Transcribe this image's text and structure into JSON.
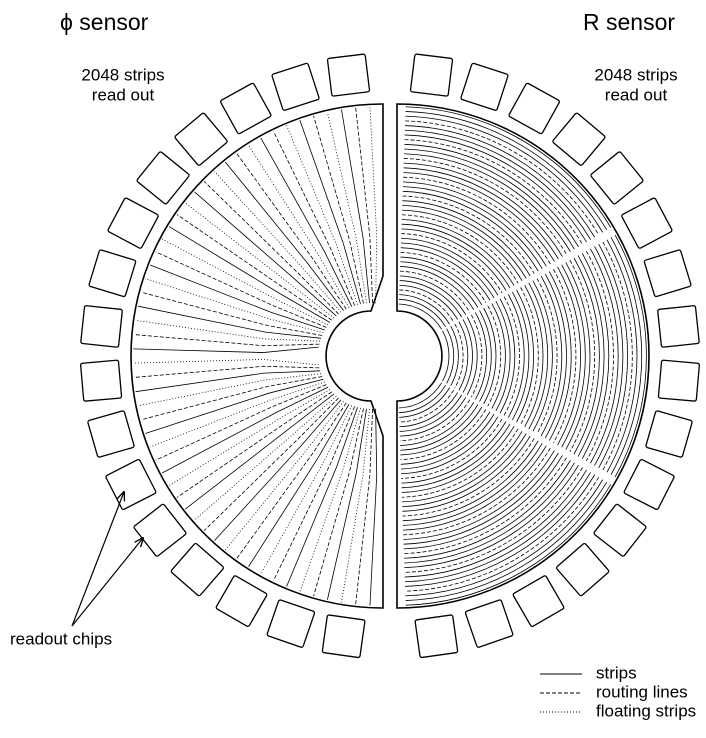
{
  "left_sensor": {
    "title": "ϕ sensor",
    "note": [
      "2048 strips",
      "read out"
    ]
  },
  "right_sensor": {
    "title": "R sensor",
    "note": [
      "2048 strips",
      "read out"
    ]
  },
  "callout": "readout chips",
  "legend": [
    {
      "label": "strips"
    },
    {
      "label": "routing lines"
    },
    {
      "label": "floating strips"
    }
  ]
}
